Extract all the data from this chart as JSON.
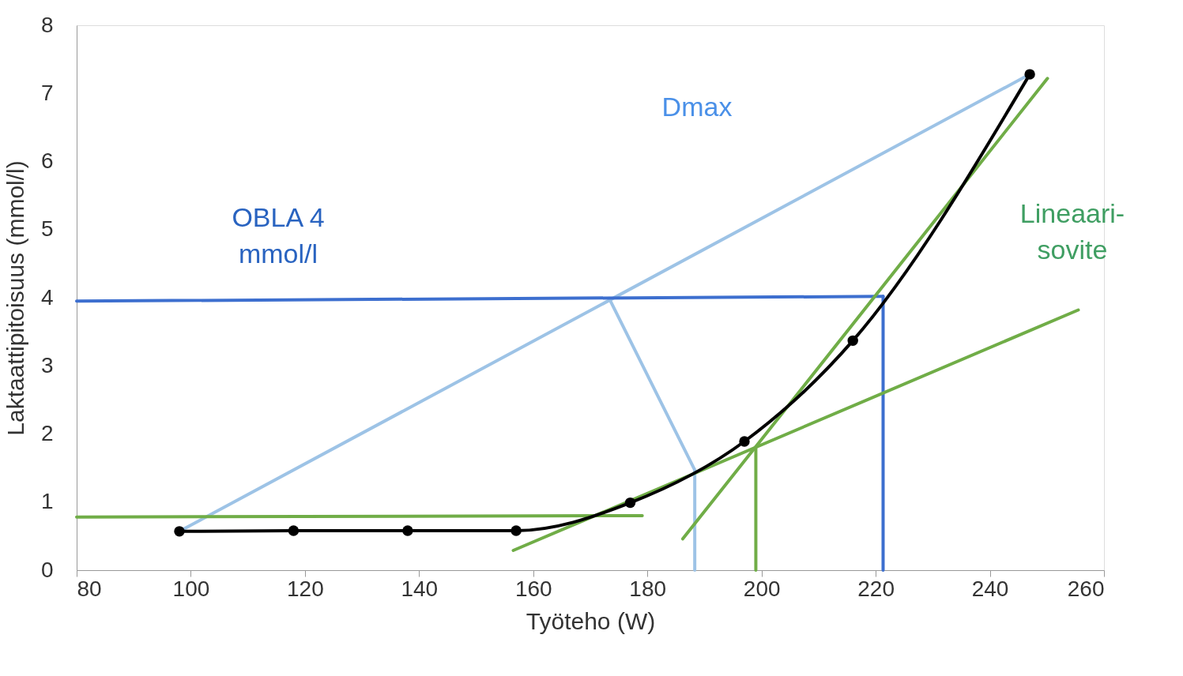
{
  "chart_data": {
    "type": "line",
    "xlabel": "Työteho (W)",
    "ylabel": "Laktaattipitoisuus (mmol/l)",
    "xlim": [
      80,
      260
    ],
    "xticks": [
      80,
      100,
      120,
      140,
      160,
      180,
      200,
      220,
      240,
      260
    ],
    "ylim": [
      0,
      8
    ],
    "yticks": [
      0,
      1,
      2,
      3,
      4,
      5,
      6,
      7,
      8
    ],
    "grid": false,
    "series": [
      {
        "color": "#9dc3e6",
        "x": [
          98,
          247
        ],
        "values": [
          0.57,
          7.28
        ],
        "marker": "none"
      },
      {
        "color": "#9dc3e6",
        "x": [
          173.3,
          188.3
        ],
        "values": [
          3.99,
          1.47
        ],
        "marker": "none"
      },
      {
        "color": "#9dc3e6",
        "x": [
          188.3,
          188.3
        ],
        "values": [
          1.47,
          0
        ],
        "marker": "none"
      },
      {
        "color": "#3d6fcf",
        "x": [
          80,
          221.3
        ],
        "values": [
          3.95,
          4.02
        ],
        "marker": "none"
      },
      {
        "color": "#3d6fcf",
        "x": [
          221.3,
          221.3
        ],
        "values": [
          4.02,
          0
        ],
        "marker": "none"
      },
      {
        "color": "#70ad47",
        "x": [
          80,
          179.1
        ],
        "values": [
          0.78,
          0.8
        ],
        "marker": "none"
      },
      {
        "color": "#70ad47",
        "x": [
          156.5,
          255.5
        ],
        "values": [
          0.29,
          3.82
        ],
        "marker": "none"
      },
      {
        "color": "#70ad47",
        "x": [
          186.2,
          250.1
        ],
        "values": [
          0.46,
          7.22
        ],
        "marker": "none"
      },
      {
        "color": "#70ad47",
        "x": [
          199,
          199
        ],
        "values": [
          1.81,
          0
        ],
        "marker": "none"
      },
      {
        "color": "#000000",
        "x": [
          98,
          118,
          138,
          157,
          177,
          197,
          216,
          247
        ],
        "values": [
          0.57,
          0.58,
          0.58,
          0.58,
          0.99,
          1.89,
          3.37,
          7.28
        ],
        "marker": "circle"
      }
    ],
    "annotations": [
      "OBLA 4\nmmol/l",
      "Dmax",
      "Lineaari-\nsovite"
    ]
  }
}
